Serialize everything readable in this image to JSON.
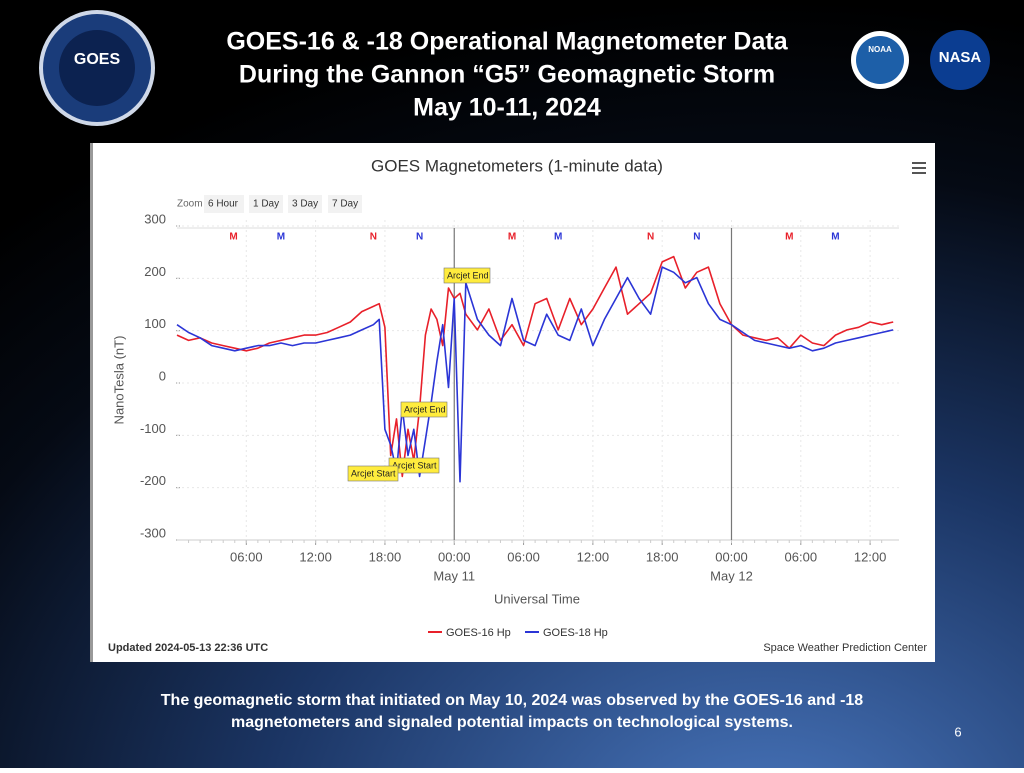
{
  "slide": {
    "title_lines": [
      "GOES-16 & -18 Operational Magnetometer Data",
      "During the Gannon “G5” Geomagnetic Storm",
      "May 10-11, 2024"
    ],
    "caption_lines": [
      "The geomagnetic storm that initiated on May 10, 2024 was observed by the GOES-16 and -18",
      "magnetometers and signaled potential impacts on technological systems."
    ],
    "page_number": "6",
    "logos": [
      "GOES",
      "NOAA",
      "NASA"
    ]
  },
  "chart_data": {
    "type": "line",
    "title": "GOES Magnetometers (1-minute data)",
    "zoom_label": "Zoom",
    "zoom_buttons": [
      "6 Hour",
      "1 Day",
      "3 Day",
      "7 Day"
    ],
    "y_label": "NanoTesla (nT)",
    "x_label": "Universal Time",
    "updated": "Updated 2024-05-13 22:36 UTC",
    "credit": "Space Weather Prediction Center",
    "xlim": [
      0,
      62.5
    ],
    "ylim": [
      -300,
      300
    ],
    "yticks": [
      -300,
      -200,
      -100,
      0,
      100,
      200,
      300
    ],
    "xticks": [
      {
        "value": 6,
        "label": "06:00"
      },
      {
        "value": 12,
        "label": "12:00"
      },
      {
        "value": 18,
        "label": "18:00"
      },
      {
        "value": 24,
        "label": "00:00",
        "sublabel": "May 11"
      },
      {
        "value": 30,
        "label": "06:00"
      },
      {
        "value": 36,
        "label": "12:00"
      },
      {
        "value": 42,
        "label": "18:00"
      },
      {
        "value": 48,
        "label": "00:00",
        "sublabel": "May 12"
      },
      {
        "value": 54,
        "label": "06:00"
      },
      {
        "value": 60,
        "label": "12:00"
      }
    ],
    "grid": true,
    "x": [
      0,
      1,
      2,
      3,
      4,
      5,
      6,
      7,
      8,
      9,
      10,
      11,
      12,
      13,
      14,
      15,
      16,
      17,
      17.5,
      18,
      18.5,
      19,
      19.5,
      20,
      20.5,
      21,
      21.5,
      22,
      22.5,
      23,
      23.5,
      24,
      24.5,
      25,
      26,
      27,
      28,
      29,
      30,
      31,
      32,
      33,
      34,
      35,
      36,
      37,
      38,
      39,
      40,
      41,
      42,
      43,
      44,
      45,
      46,
      47,
      48,
      49,
      50,
      51,
      52,
      53,
      54,
      55,
      56,
      57,
      58,
      59,
      60,
      61,
      62
    ],
    "series": [
      {
        "name": "GOES-16 Hp",
        "color": "#e8202a",
        "values": [
          80,
          70,
          75,
          65,
          60,
          55,
          50,
          55,
          65,
          70,
          75,
          80,
          80,
          85,
          95,
          105,
          125,
          135,
          140,
          95,
          -150,
          -80,
          -190,
          -100,
          -160,
          -60,
          80,
          130,
          110,
          60,
          170,
          150,
          160,
          120,
          90,
          130,
          70,
          100,
          60,
          140,
          150,
          90,
          150,
          100,
          130,
          170,
          210,
          120,
          140,
          160,
          220,
          230,
          170,
          200,
          210,
          140,
          100,
          80,
          75,
          70,
          75,
          55,
          80,
          65,
          60,
          80,
          90,
          95,
          105,
          100,
          105
        ]
      },
      {
        "name": "GOES-18 Hp",
        "color": "#2b35d6",
        "values": [
          100,
          85,
          75,
          60,
          55,
          50,
          55,
          60,
          60,
          65,
          60,
          65,
          65,
          70,
          75,
          80,
          90,
          100,
          110,
          -100,
          -130,
          -180,
          -60,
          -150,
          -100,
          -190,
          -120,
          -50,
          30,
          100,
          -20,
          150,
          -200,
          180,
          110,
          80,
          60,
          150,
          70,
          60,
          120,
          80,
          70,
          130,
          60,
          110,
          150,
          190,
          150,
          120,
          210,
          200,
          180,
          190,
          140,
          110,
          100,
          85,
          70,
          65,
          60,
          55,
          60,
          50,
          55,
          65,
          70,
          75,
          80,
          85,
          90
        ]
      }
    ],
    "markers": [
      {
        "x": 4.9,
        "label": "M",
        "color": "#e8202a"
      },
      {
        "x": 9,
        "label": "M",
        "color": "#2b35d6"
      },
      {
        "x": 17,
        "label": "N",
        "color": "#e8202a"
      },
      {
        "x": 21,
        "label": "N",
        "color": "#2b35d6"
      },
      {
        "x": 29,
        "label": "M",
        "color": "#e8202a"
      },
      {
        "x": 33,
        "label": "M",
        "color": "#2b35d6"
      },
      {
        "x": 41,
        "label": "N",
        "color": "#e8202a"
      },
      {
        "x": 45,
        "label": "N",
        "color": "#2b35d6"
      },
      {
        "x": 53,
        "label": "M",
        "color": "#e8202a"
      },
      {
        "x": 57,
        "label": "M",
        "color": "#2b35d6"
      }
    ],
    "day_lines": [
      24,
      48
    ],
    "annotations": [
      "Arcjet End",
      "Arcjet End",
      "Arcjet Start",
      "Arcjet Start"
    ]
  }
}
